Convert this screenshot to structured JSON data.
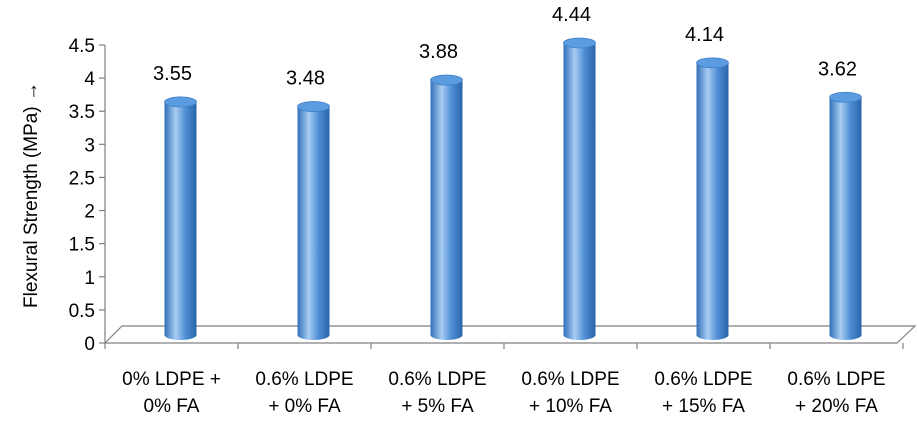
{
  "chart_data": {
    "type": "bar",
    "categories": [
      [
        "0% LDPE +",
        "0% FA"
      ],
      [
        "0.6% LDPE",
        "+ 0% FA"
      ],
      [
        "0.6% LDPE",
        "+ 5% FA"
      ],
      [
        "0.6% LDPE",
        "+ 10% FA"
      ],
      [
        "0.6% LDPE",
        "+ 15% FA"
      ],
      [
        "0.6% LDPE",
        "+ 20% FA"
      ]
    ],
    "values": [
      3.55,
      3.48,
      3.88,
      4.44,
      4.14,
      3.62
    ],
    "data_labels": [
      "3.55",
      "3.48",
      "3.88",
      "4.44",
      "4.14",
      "3.62"
    ],
    "title": "",
    "xlabel": "",
    "ylabel": "Flexural Strength (MPa) →",
    "ylim": [
      0,
      4.5
    ],
    "yticks": [
      "0",
      "0.5",
      "1",
      "1.5",
      "2",
      "2.5",
      "3",
      "3.5",
      "4",
      "4.5"
    ],
    "style": "3d-cylinder",
    "grid": false,
    "legend": "none",
    "colors": {
      "bar": "#4f8fd6",
      "bar_dark": "#2f6fb8",
      "bar_light": "#a9cdf3",
      "floor": "#808080"
    }
  }
}
